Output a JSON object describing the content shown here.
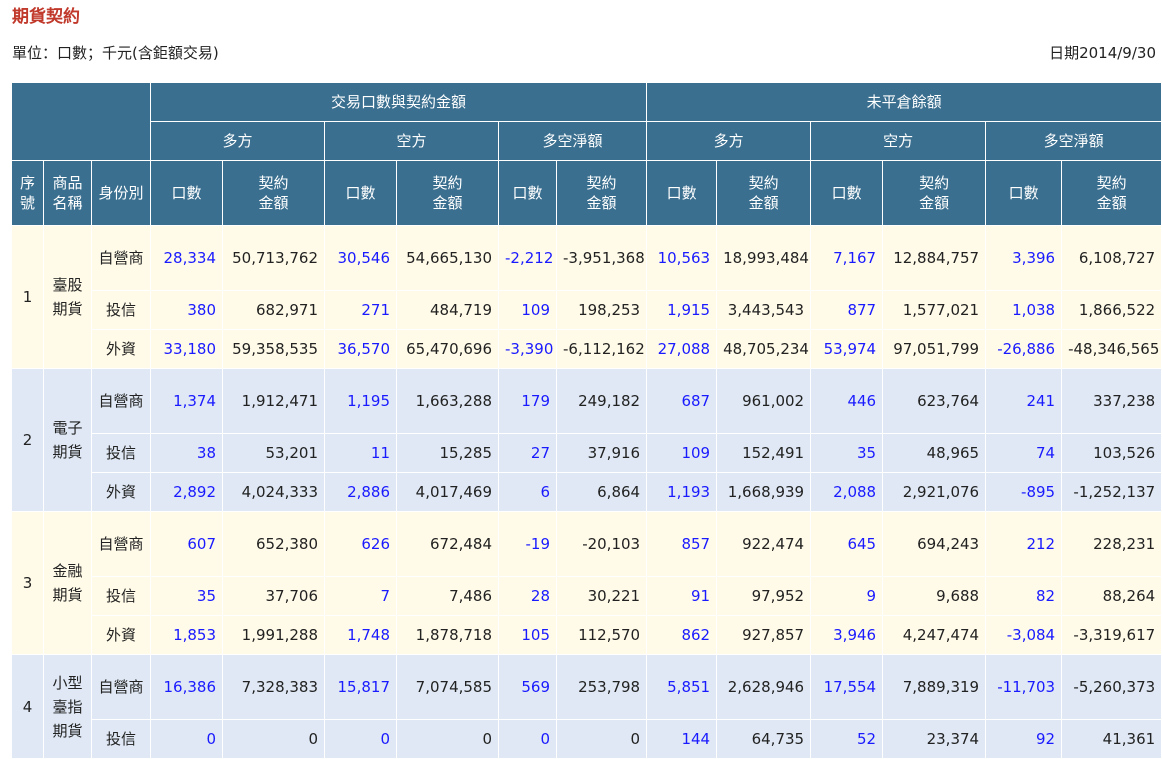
{
  "title": "期貨契約",
  "unit": "單位：口數；千元(含鉅額交易)",
  "date": "日期2014/9/30",
  "headers": {
    "group_trade": "交易口數與契約金額",
    "group_oi": "未平倉餘額",
    "long": "多方",
    "short": "空方",
    "net": "多空淨額",
    "seq": "序號",
    "product": "商品名稱",
    "identity": "身份別",
    "lots": "口數",
    "amount": "契約金額"
  },
  "groups": [
    {
      "idx": "1",
      "product": "臺股期貨",
      "rows": [
        {
          "type": "自營商",
          "v": [
            "28,334",
            "50,713,762",
            "30,546",
            "54,665,130",
            "-2,212",
            "-3,951,368",
            "10,563",
            "18,993,484",
            "7,167",
            "12,884,757",
            "3,396",
            "6,108,727"
          ]
        },
        {
          "type": "投信",
          "v": [
            "380",
            "682,971",
            "271",
            "484,719",
            "109",
            "198,253",
            "1,915",
            "3,443,543",
            "877",
            "1,577,021",
            "1,038",
            "1,866,522"
          ]
        },
        {
          "type": "外資",
          "v": [
            "33,180",
            "59,358,535",
            "36,570",
            "65,470,696",
            "-3,390",
            "-6,112,162",
            "27,088",
            "48,705,234",
            "53,974",
            "97,051,799",
            "-26,886",
            "-48,346,565"
          ]
        }
      ]
    },
    {
      "idx": "2",
      "product": "電子期貨",
      "rows": [
        {
          "type": "自營商",
          "v": [
            "1,374",
            "1,912,471",
            "1,195",
            "1,663,288",
            "179",
            "249,182",
            "687",
            "961,002",
            "446",
            "623,764",
            "241",
            "337,238"
          ]
        },
        {
          "type": "投信",
          "v": [
            "38",
            "53,201",
            "11",
            "15,285",
            "27",
            "37,916",
            "109",
            "152,491",
            "35",
            "48,965",
            "74",
            "103,526"
          ]
        },
        {
          "type": "外資",
          "v": [
            "2,892",
            "4,024,333",
            "2,886",
            "4,017,469",
            "6",
            "6,864",
            "1,193",
            "1,668,939",
            "2,088",
            "2,921,076",
            "-895",
            "-1,252,137"
          ]
        }
      ]
    },
    {
      "idx": "3",
      "product": "金融期貨",
      "rows": [
        {
          "type": "自營商",
          "v": [
            "607",
            "652,380",
            "626",
            "672,484",
            "-19",
            "-20,103",
            "857",
            "922,474",
            "645",
            "694,243",
            "212",
            "228,231"
          ]
        },
        {
          "type": "投信",
          "v": [
            "35",
            "37,706",
            "7",
            "7,486",
            "28",
            "30,221",
            "91",
            "97,952",
            "9",
            "9,688",
            "82",
            "88,264"
          ]
        },
        {
          "type": "外資",
          "v": [
            "1,853",
            "1,991,288",
            "1,748",
            "1,878,718",
            "105",
            "112,570",
            "862",
            "927,857",
            "3,946",
            "4,247,474",
            "-3,084",
            "-3,319,617"
          ]
        }
      ]
    },
    {
      "idx": "4",
      "product": "小型臺指期貨",
      "rows": [
        {
          "type": "自營商",
          "v": [
            "16,386",
            "7,328,383",
            "15,817",
            "7,074,585",
            "569",
            "253,798",
            "5,851",
            "2,628,946",
            "17,554",
            "7,889,319",
            "-11,703",
            "-5,260,373"
          ]
        },
        {
          "type": "投信",
          "v": [
            "0",
            "0",
            "0",
            "0",
            "0",
            "0",
            "144",
            "64,735",
            "52",
            "23,374",
            "92",
            "41,361"
          ]
        }
      ]
    }
  ]
}
